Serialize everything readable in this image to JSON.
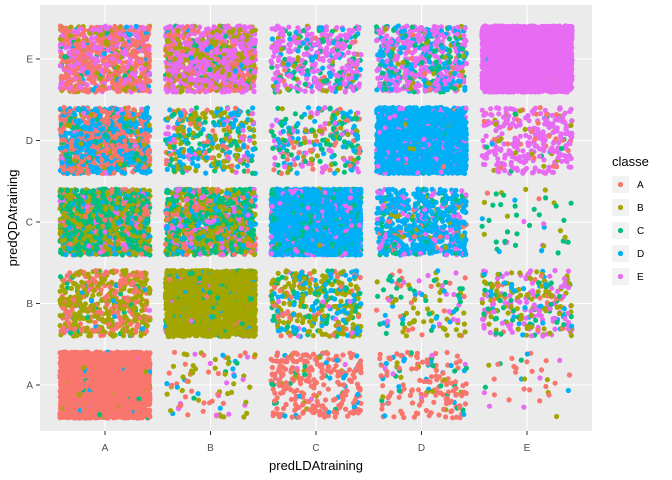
{
  "chart_data": {
    "type": "scatter",
    "jitter": true,
    "xlabel": "predLDAtraining",
    "ylabel": "predQDAtraining",
    "x_categories": [
      "A",
      "B",
      "C",
      "D",
      "E"
    ],
    "y_categories": [
      "A",
      "B",
      "C",
      "D",
      "E"
    ],
    "grid": true,
    "legend": {
      "title": "classe",
      "position": "right",
      "entries": [
        "A",
        "B",
        "C",
        "D",
        "E"
      ]
    },
    "series": [
      {
        "name": "A",
        "color": "#F8766D"
      },
      {
        "name": "B",
        "color": "#A3A500"
      },
      {
        "name": "C",
        "color": "#00BF7D"
      },
      {
        "name": "D",
        "color": "#00B0F6"
      },
      {
        "name": "E",
        "color": "#E76BF3"
      }
    ],
    "cells": [
      {
        "x": "A",
        "y": "A",
        "counts": {
          "A": 3400,
          "B": 60,
          "C": 40,
          "D": 30,
          "E": 10
        }
      },
      {
        "x": "B",
        "y": "A",
        "counts": {
          "A": 25,
          "B": 35,
          "C": 5,
          "D": 10,
          "E": 12
        }
      },
      {
        "x": "C",
        "y": "A",
        "counts": {
          "A": 230,
          "B": 10,
          "C": 15,
          "D": 20,
          "E": 5
        }
      },
      {
        "x": "D",
        "y": "A",
        "counts": {
          "A": 120,
          "B": 10,
          "C": 15,
          "D": 20,
          "E": 5
        }
      },
      {
        "x": "E",
        "y": "A",
        "counts": {
          "A": 20,
          "B": 5,
          "C": 3,
          "D": 3,
          "E": 5
        }
      },
      {
        "x": "A",
        "y": "B",
        "counts": {
          "A": 200,
          "B": 280,
          "C": 30,
          "D": 15,
          "E": 10
        }
      },
      {
        "x": "B",
        "y": "B",
        "counts": {
          "A": 40,
          "B": 2200,
          "C": 120,
          "D": 80,
          "E": 40
        }
      },
      {
        "x": "C",
        "y": "B",
        "counts": {
          "A": 40,
          "B": 170,
          "C": 60,
          "D": 90,
          "E": 20
        }
      },
      {
        "x": "D",
        "y": "B",
        "counts": {
          "A": 20,
          "B": 40,
          "C": 25,
          "D": 15,
          "E": 15
        }
      },
      {
        "x": "E",
        "y": "B",
        "counts": {
          "A": 20,
          "B": 90,
          "C": 40,
          "D": 30,
          "E": 100
        }
      },
      {
        "x": "A",
        "y": "C",
        "counts": {
          "A": 250,
          "B": 400,
          "C": 600,
          "D": 150,
          "E": 80
        }
      },
      {
        "x": "B",
        "y": "C",
        "counts": {
          "A": 150,
          "B": 300,
          "C": 450,
          "D": 150,
          "E": 120
        }
      },
      {
        "x": "C",
        "y": "C",
        "counts": {
          "A": 15,
          "B": 40,
          "C": 300,
          "D": 2600,
          "E": 350
        }
      },
      {
        "x": "D",
        "y": "C",
        "counts": {
          "A": 20,
          "B": 20,
          "C": 60,
          "D": 450,
          "E": 100
        }
      },
      {
        "x": "E",
        "y": "C",
        "counts": {
          "A": 2,
          "B": 10,
          "C": 25,
          "D": 5,
          "E": 5
        }
      },
      {
        "x": "A",
        "y": "D",
        "counts": {
          "A": 400,
          "B": 60,
          "C": 80,
          "D": 420,
          "E": 30
        }
      },
      {
        "x": "B",
        "y": "D",
        "counts": {
          "A": 40,
          "B": 110,
          "C": 60,
          "D": 110,
          "E": 40
        }
      },
      {
        "x": "C",
        "y": "D",
        "counts": {
          "A": 40,
          "B": 40,
          "C": 70,
          "D": 60,
          "E": 50
        }
      },
      {
        "x": "D",
        "y": "D",
        "counts": {
          "A": 10,
          "B": 20,
          "C": 20,
          "D": 2300,
          "E": 200
        }
      },
      {
        "x": "E",
        "y": "D",
        "counts": {
          "A": 30,
          "B": 20,
          "C": 10,
          "D": 5,
          "E": 250
        }
      },
      {
        "x": "A",
        "y": "E",
        "counts": {
          "A": 450,
          "B": 90,
          "C": 20,
          "D": 40,
          "E": 250
        }
      },
      {
        "x": "B",
        "y": "E",
        "counts": {
          "A": 150,
          "B": 250,
          "C": 40,
          "D": 20,
          "E": 650
        }
      },
      {
        "x": "C",
        "y": "E",
        "counts": {
          "A": 20,
          "B": 30,
          "C": 60,
          "D": 50,
          "E": 250
        }
      },
      {
        "x": "D",
        "y": "E",
        "counts": {
          "A": 20,
          "B": 40,
          "C": 100,
          "D": 150,
          "E": 300
        }
      },
      {
        "x": "E",
        "y": "E",
        "counts": {
          "A": 3,
          "B": 5,
          "C": 3,
          "D": 3,
          "E": 3300
        }
      }
    ]
  }
}
